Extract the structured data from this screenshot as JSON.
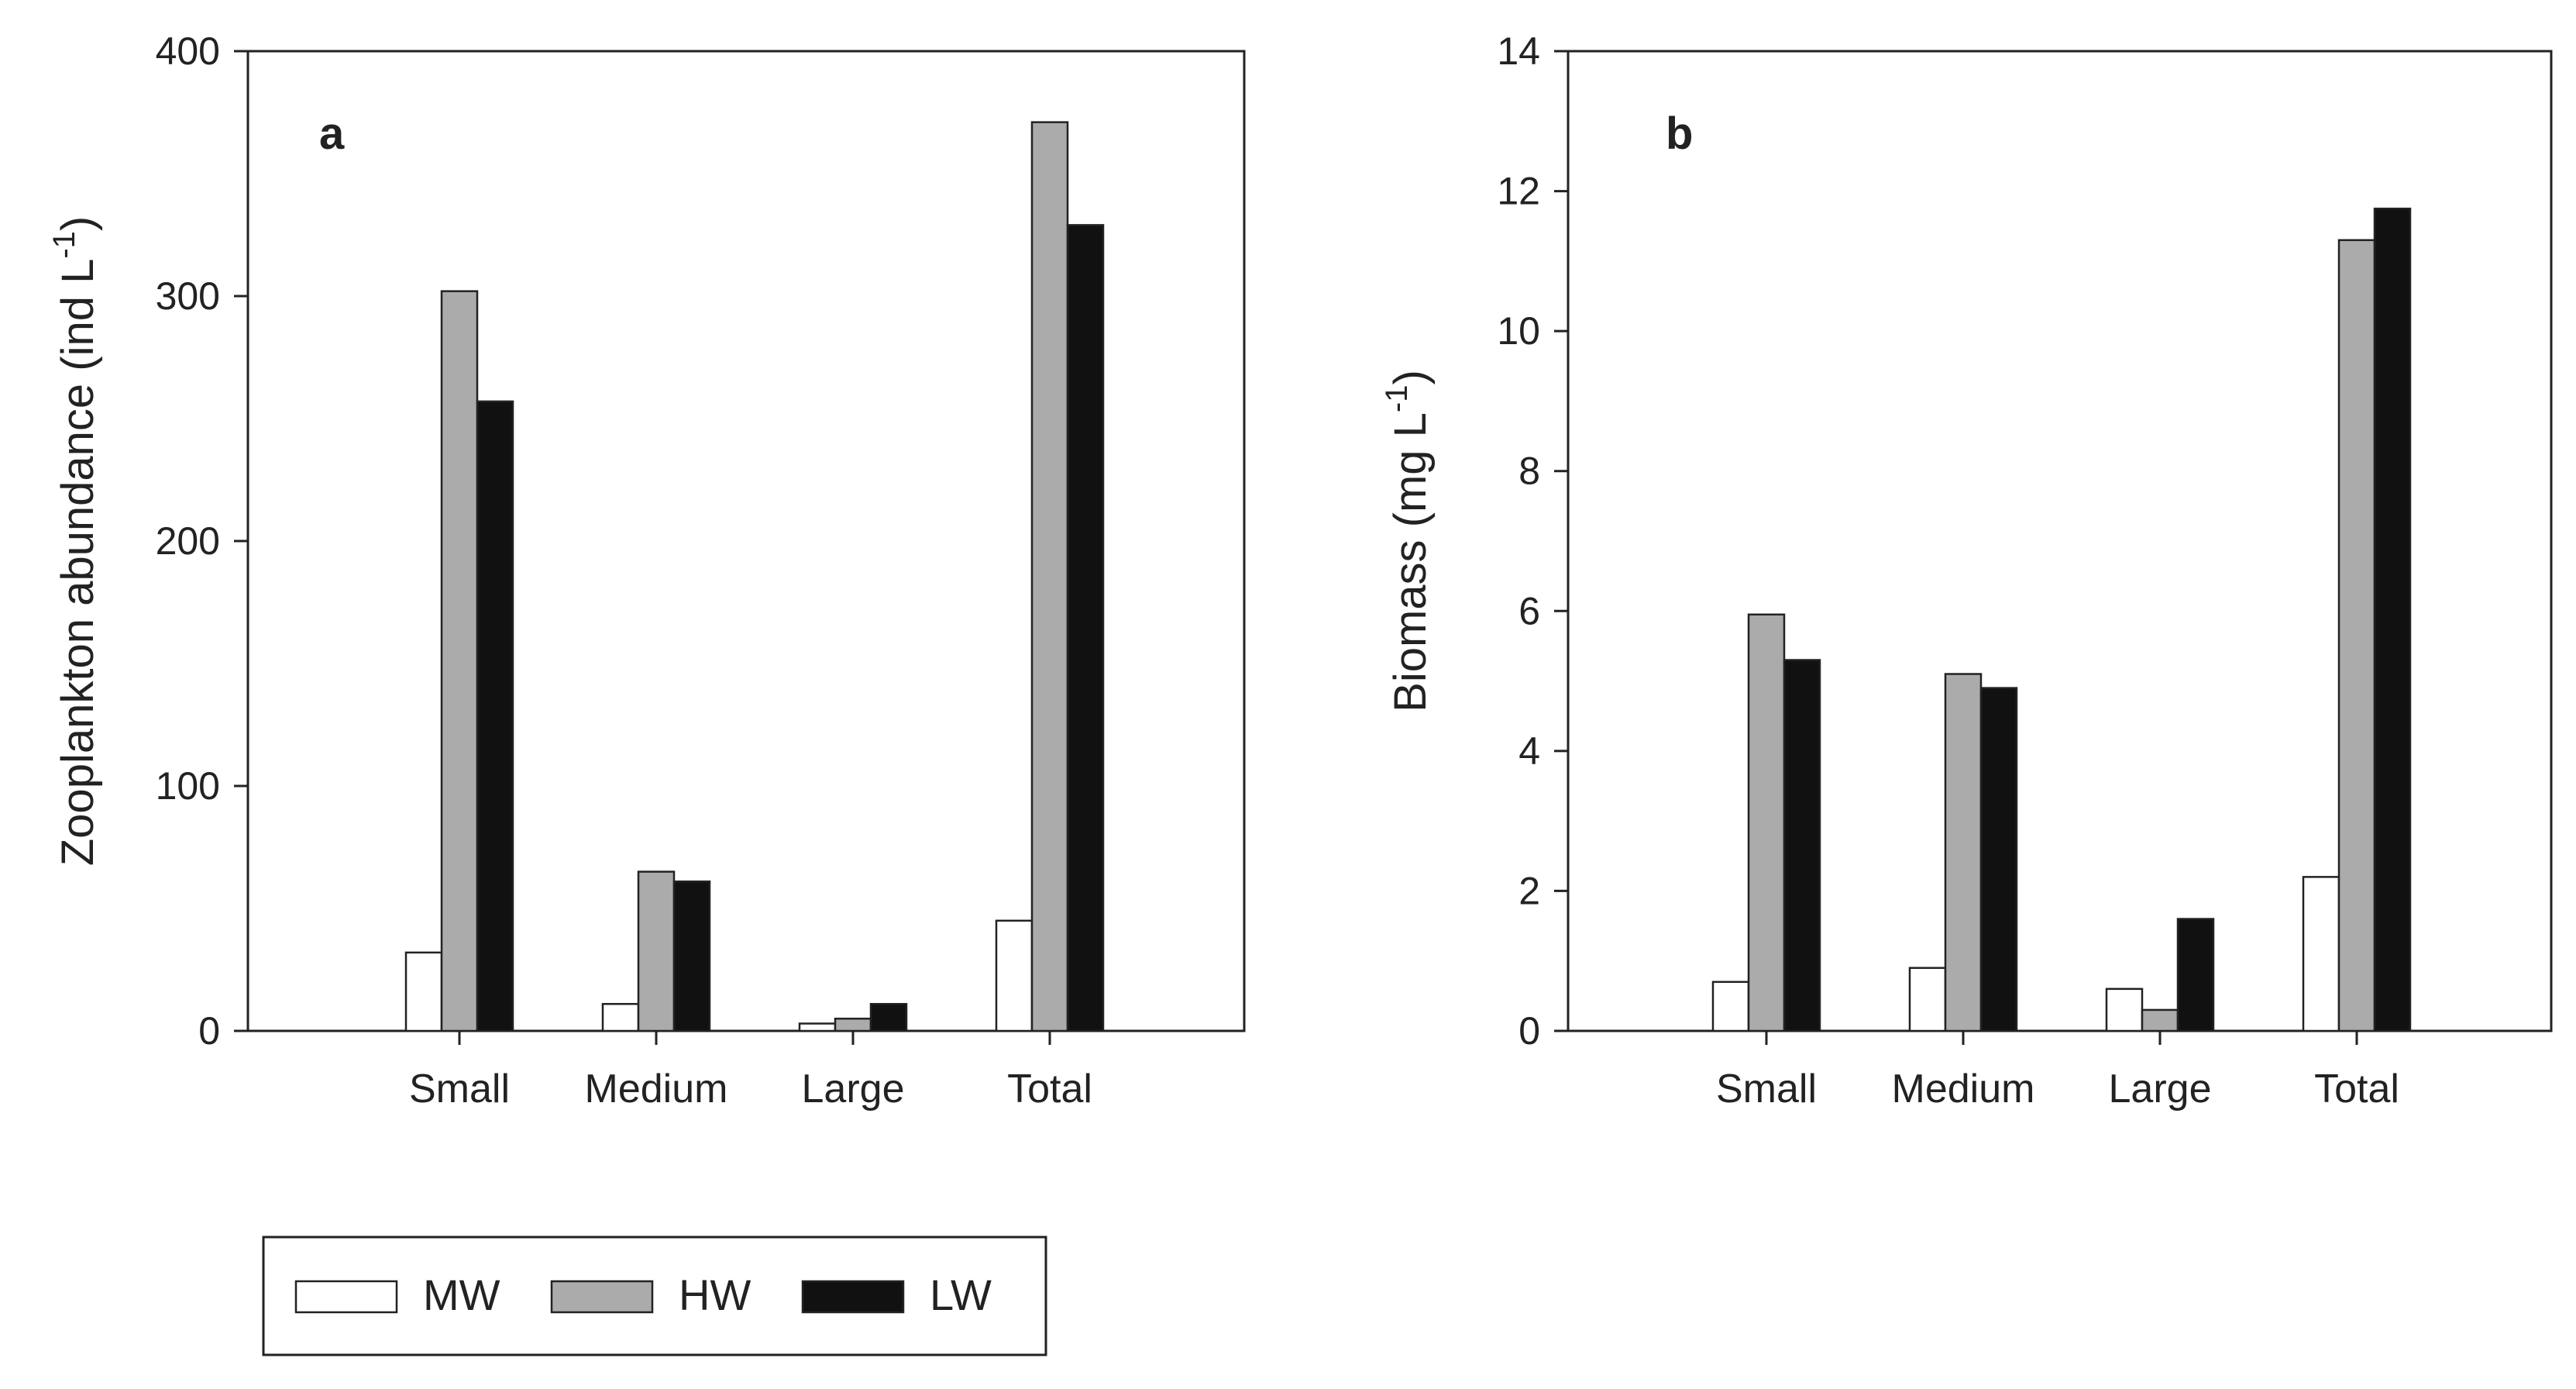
{
  "colors": {
    "MW": "#ffffff",
    "HW": "#ababab",
    "LW": "#111111"
  },
  "legend": {
    "items": [
      {
        "key": "MW",
        "label": "MW"
      },
      {
        "key": "HW",
        "label": "HW"
      },
      {
        "key": "LW",
        "label": "LW"
      }
    ]
  },
  "chart_data": [
    {
      "type": "bar",
      "panel": "a",
      "title": "",
      "xlabel": "",
      "ylabel": {
        "main": "Zooplankton abundance (ind L",
        "sup": "-1",
        "close": ")"
      },
      "ylim": [
        0,
        400
      ],
      "yticks": [
        0,
        100,
        200,
        300,
        400
      ],
      "categories": [
        "Small",
        "Medium",
        "Large",
        "Total"
      ],
      "series": [
        {
          "name": "MW",
          "values": [
            32,
            11,
            3,
            45
          ]
        },
        {
          "name": "HW",
          "values": [
            302,
            65,
            5,
            371
          ]
        },
        {
          "name": "LW",
          "values": [
            257,
            61,
            11,
            329
          ]
        }
      ]
    },
    {
      "type": "bar",
      "panel": "b",
      "title": "",
      "xlabel": "",
      "ylabel": {
        "main": "Biomass (mg L",
        "sup": "-1",
        "close": ")"
      },
      "ylim": [
        0,
        14
      ],
      "yticks": [
        0,
        2,
        4,
        6,
        8,
        10,
        12,
        14
      ],
      "categories": [
        "Small",
        "Medium",
        "Large",
        "Total"
      ],
      "series": [
        {
          "name": "MW",
          "values": [
            0.7,
            0.9,
            0.6,
            2.2
          ]
        },
        {
          "name": "HW",
          "values": [
            5.95,
            5.1,
            0.3,
            11.3
          ]
        },
        {
          "name": "LW",
          "values": [
            5.3,
            4.9,
            1.6,
            11.75
          ]
        }
      ]
    }
  ]
}
